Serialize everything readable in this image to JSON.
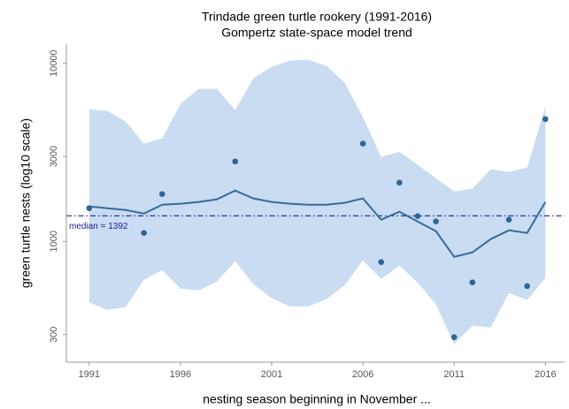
{
  "chart_data": {
    "type": "line",
    "title": "Trindade green turtle rookery (1991-2016)",
    "subtitle": "Gompertz state-space model trend",
    "xlabel": "nesting season beginning in November ...",
    "ylabel": "green turtle nests (log10 scale)",
    "log_scale_y": true,
    "xlim": [
      1989.75,
      2017.05
    ],
    "ylim": [
      210,
      12800
    ],
    "xticks": [
      1991,
      1996,
      2001,
      2006,
      2011,
      2016
    ],
    "yticks": [
      300,
      1000,
      3000,
      10000
    ],
    "x": [
      1991,
      1992,
      1993,
      1994,
      1995,
      1996,
      1997,
      1998,
      1999,
      2000,
      2001,
      2002,
      2003,
      2004,
      2005,
      2006,
      2007,
      2008,
      2009,
      2010,
      2011,
      2012,
      2013,
      2014,
      2015,
      2016
    ],
    "interval": {
      "color": "#c9dcf1",
      "upper": [
        5521,
        5395,
        4710,
        3540,
        3787,
        5916,
        7178,
        7178,
        5458,
        8240,
        9554,
        10350,
        10470,
        9663,
        7780,
        4983,
        2979,
        3190,
        2691,
        2265,
        1910,
        1976,
        2541,
        2455,
        2600,
        5715
      ],
      "lower": [
        453,
        413,
        428,
        609,
        690,
        543,
        531,
        596,
        774,
        575,
        480,
        432,
        432,
        474,
        569,
        783,
        616,
        731,
        589,
        443,
        265,
        337,
        329,
        513,
        469,
        623
      ]
    },
    "trend": {
      "color": "#386a9a",
      "values": [
        1572,
        1536,
        1501,
        1434,
        1608,
        1627,
        1665,
        1723,
        1930,
        1743,
        1665,
        1627,
        1608,
        1608,
        1646,
        1743,
        1324,
        1468,
        1294,
        1142,
        820,
        868,
        1030,
        1155,
        1116,
        1665
      ]
    },
    "observations": {
      "color": "#2f6596",
      "x": [
        1991,
        1994,
        1995,
        1999,
        2006,
        2007,
        2008,
        2009,
        2010,
        2011,
        2012,
        2014,
        2015,
        2016
      ],
      "values": [
        1537,
        1116,
        1845,
        2812,
        3540,
        766,
        2138,
        1387,
        1295,
        290,
        589,
        1324,
        562,
        4860
      ]
    },
    "median": {
      "value": 1392,
      "label": "median = 1392",
      "color": "#1c1c8c"
    }
  }
}
